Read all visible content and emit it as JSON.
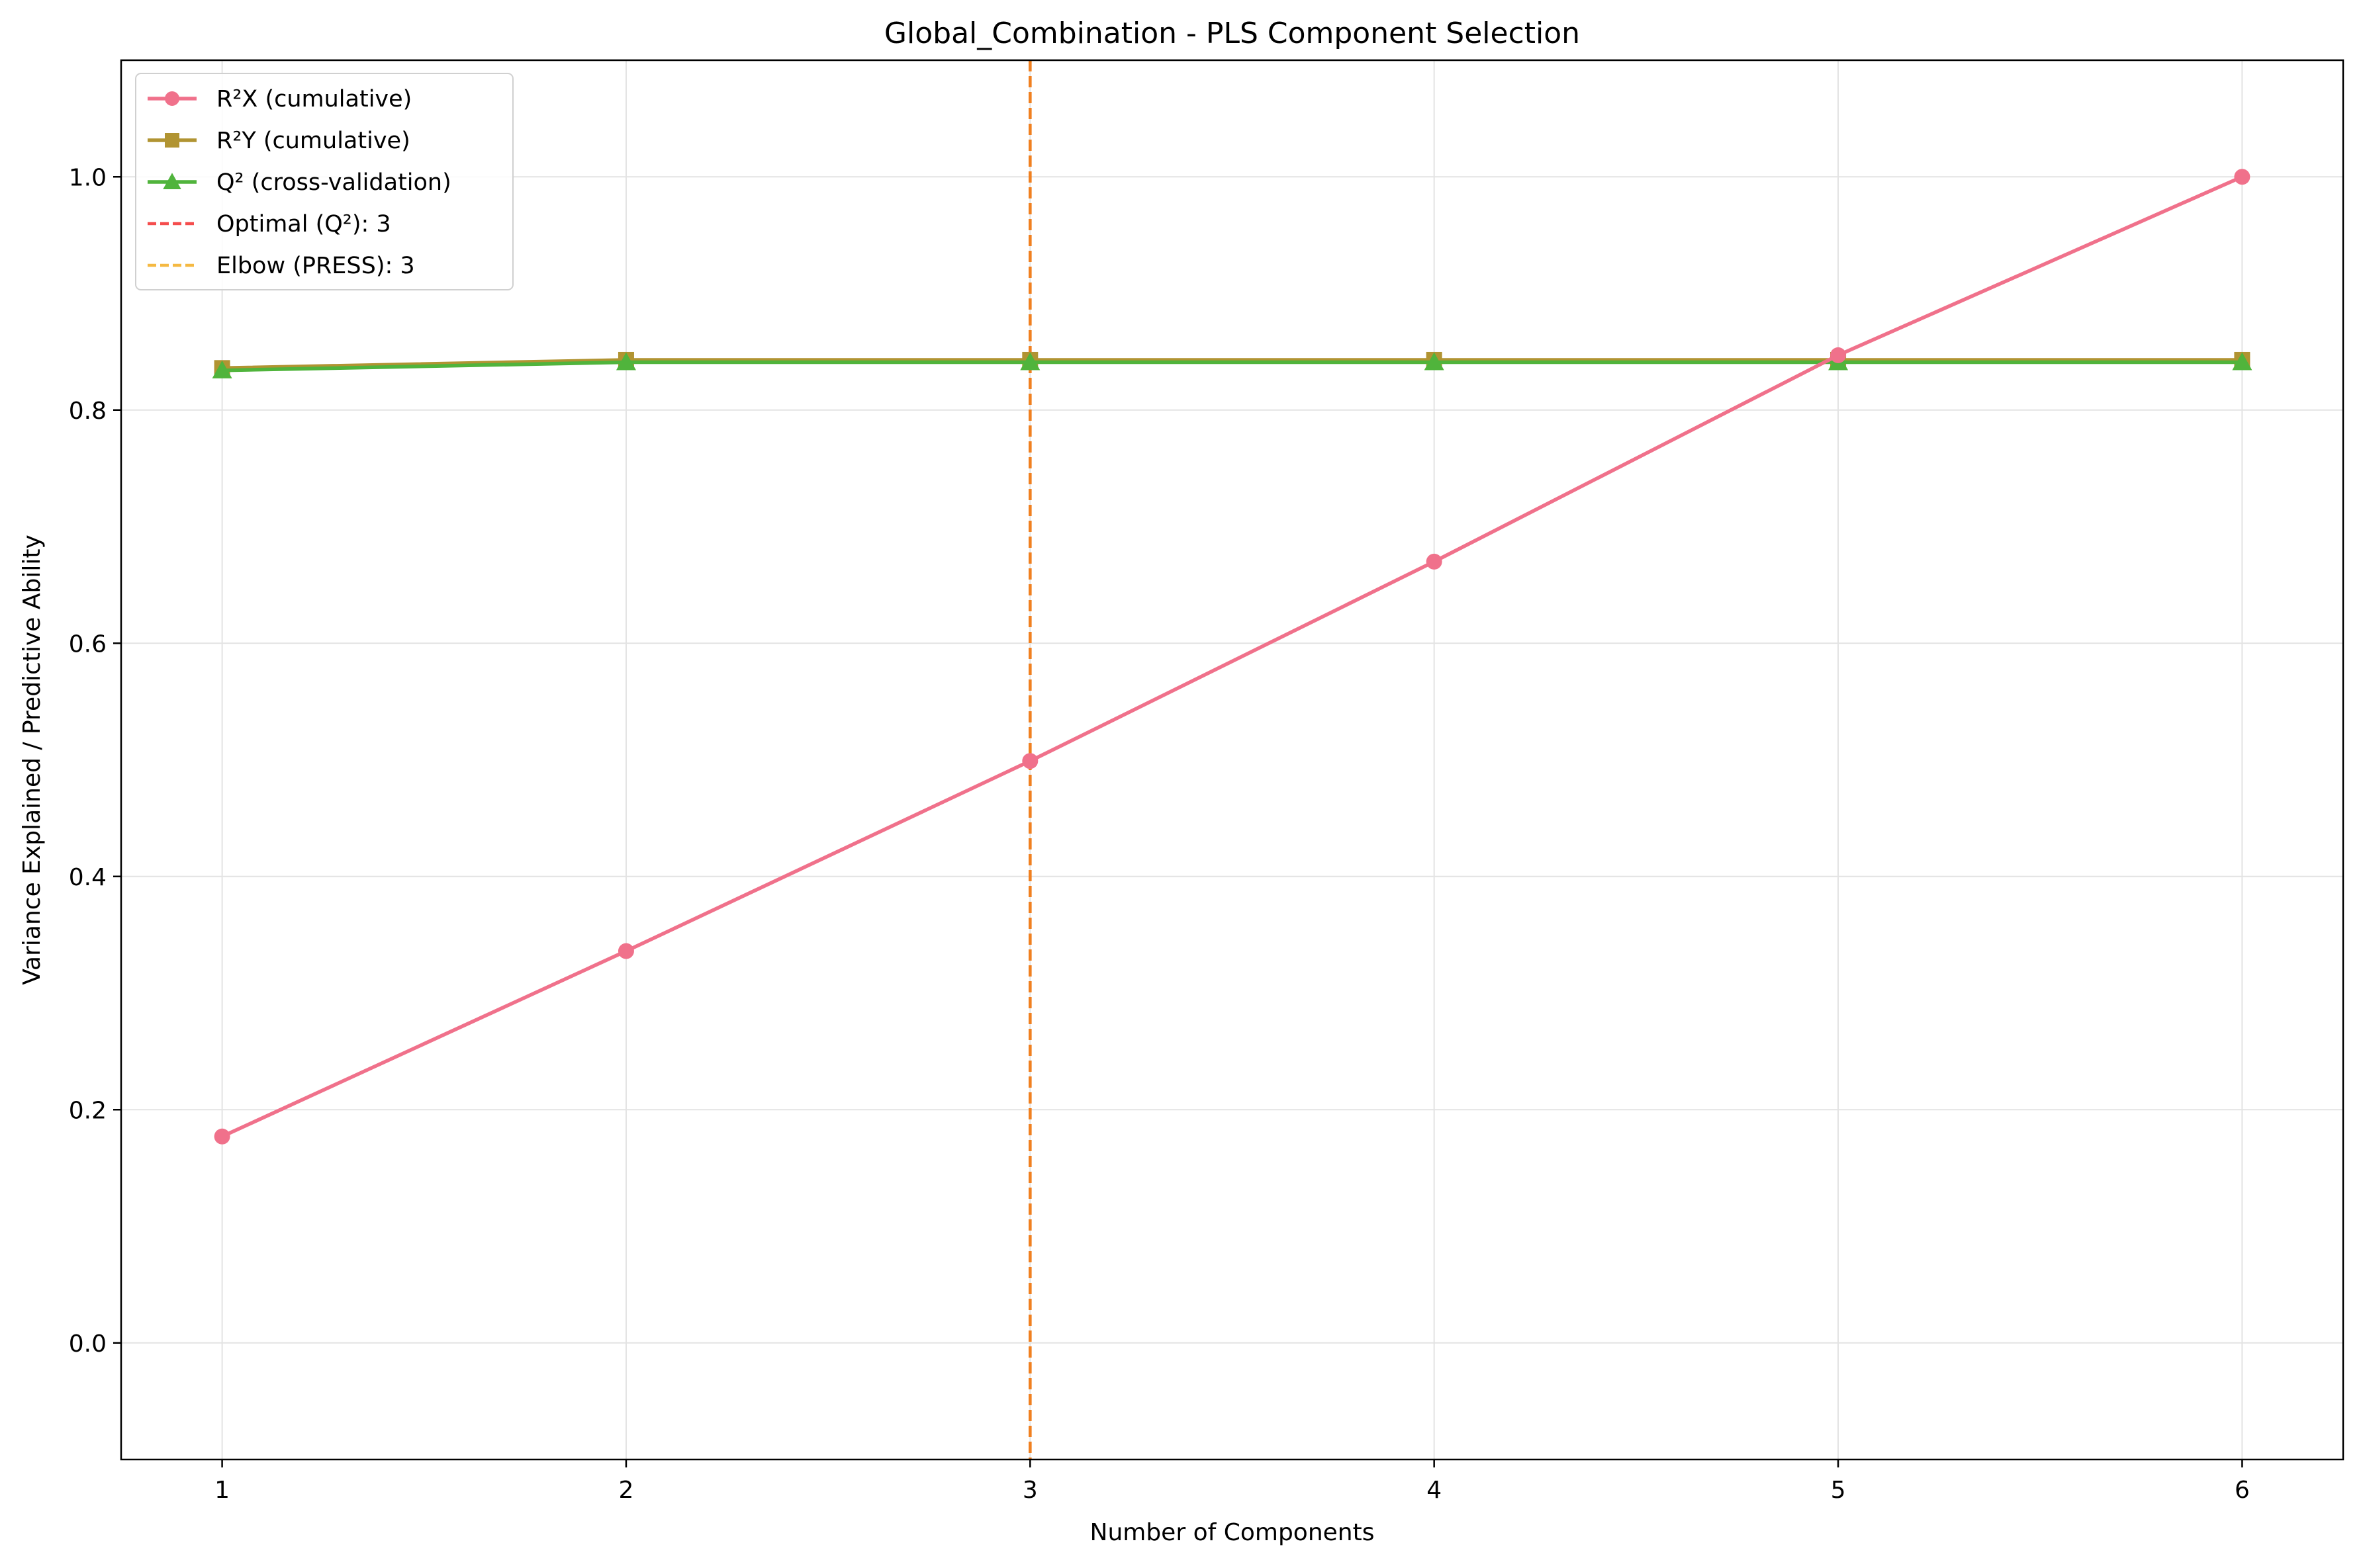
{
  "chart_data": {
    "type": "line",
    "title": "Global_Combination - PLS Component Selection",
    "xlabel": "Number of Components",
    "ylabel": "Variance Explained / Predictive Ability",
    "x": [
      1,
      2,
      3,
      4,
      5,
      6
    ],
    "xlim": [
      0.75,
      6.25
    ],
    "ylim": [
      -0.1,
      1.1
    ],
    "x_ticks": [
      "1",
      "2",
      "3",
      "4",
      "5",
      "6"
    ],
    "y_ticks": [
      "0.0",
      "0.2",
      "0.4",
      "0.6",
      "0.8",
      "1.0"
    ],
    "grid": true,
    "legend_position": "top-left",
    "series": [
      {
        "name": "R²X (cumulative)",
        "values": [
          0.177,
          0.336,
          0.499,
          0.67,
          0.847,
          1.0
        ],
        "color": "#f0718b",
        "marker": "circle"
      },
      {
        "name": "R²Y (cumulative)",
        "values": [
          0.836,
          0.843,
          0.843,
          0.843,
          0.843,
          0.843
        ],
        "color": "#b19432",
        "marker": "square"
      },
      {
        "name": "Q² (cross-validation)",
        "values": [
          0.834,
          0.841,
          0.841,
          0.841,
          0.841,
          0.841
        ],
        "color": "#50b43c",
        "marker": "triangle"
      }
    ],
    "reference_lines": [
      {
        "name": "Optimal (Q²): 3",
        "x": 3,
        "color": "#f54d4d",
        "style": "dashed"
      },
      {
        "name": "Elbow (PRESS): 3",
        "x": 3,
        "color": "#f5b942",
        "style": "dashed"
      }
    ],
    "vertical_line_color": "#f08020"
  }
}
